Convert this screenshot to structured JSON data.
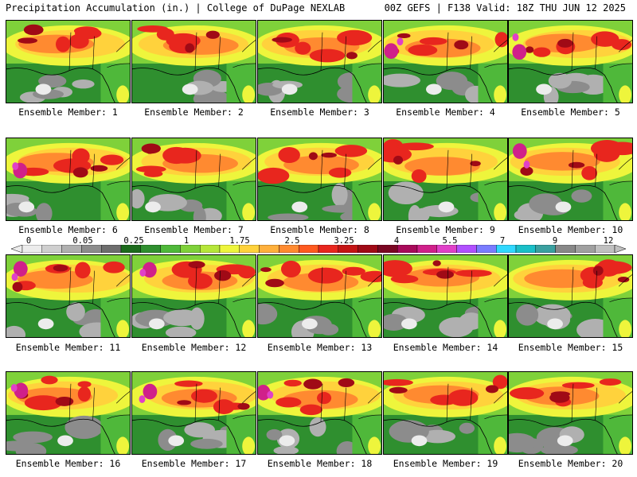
{
  "header": {
    "left": "Precipitation Accumulation (in.) | College of DuPage NEXLAB",
    "right": "00Z GEFS | F138 Valid: 18Z THU JUN 12 2025"
  },
  "member_label_prefix": "Ensemble Member: ",
  "members": [
    {
      "n": "1",
      "label": "Ensemble Member: 1"
    },
    {
      "n": "2",
      "label": "Ensemble Member: 2"
    },
    {
      "n": "3",
      "label": "Ensemble Member: 3"
    },
    {
      "n": "4",
      "label": "Ensemble Member: 4"
    },
    {
      "n": "5",
      "label": "Ensemble Member: 5"
    },
    {
      "n": "6",
      "label": "Ensemble Member: 6"
    },
    {
      "n": "7",
      "label": "Ensemble Member: 7"
    },
    {
      "n": "8",
      "label": "Ensemble Member: 8"
    },
    {
      "n": "9",
      "label": "Ensemble Member: 9"
    },
    {
      "n": "10",
      "label": "Ensemble Member: 10"
    },
    {
      "n": "11",
      "label": "Ensemble Member: 11"
    },
    {
      "n": "12",
      "label": "Ensemble Member: 12"
    },
    {
      "n": "13",
      "label": "Ensemble Member: 13"
    },
    {
      "n": "14",
      "label": "Ensemble Member: 14"
    },
    {
      "n": "15",
      "label": "Ensemble Member: 15"
    },
    {
      "n": "16",
      "label": "Ensemble Member: 16"
    },
    {
      "n": "17",
      "label": "Ensemble Member: 17"
    },
    {
      "n": "18",
      "label": "Ensemble Member: 18"
    },
    {
      "n": "19",
      "label": "Ensemble Member: 19"
    },
    {
      "n": "20",
      "label": "Ensemble Member: 20"
    }
  ],
  "colorbar": {
    "tick_labels": [
      "0",
      "0.05",
      "0.25",
      "1",
      "1.75",
      "2.5",
      "3.25",
      "4",
      "5.5",
      "7",
      "9",
      "12"
    ],
    "colors": [
      "#ececec",
      "#cfcfcf",
      "#b0b0b0",
      "#8c8c8c",
      "#6e6e6e",
      "#1d6b1d",
      "#2f8f2f",
      "#4fb83a",
      "#7fd13a",
      "#b6e63a",
      "#eef53c",
      "#ffd23c",
      "#ffb03c",
      "#ff8a30",
      "#ff5a20",
      "#e8261e",
      "#c41414",
      "#a00a16",
      "#7a0622",
      "#a80a5a",
      "#d0208a",
      "#e040c8",
      "#b050ff",
      "#7a7cff",
      "#30d8ff",
      "#1abfc8",
      "#3aa0a0",
      "#888888",
      "#a0a0a0",
      "#c0c0c0"
    ]
  }
}
